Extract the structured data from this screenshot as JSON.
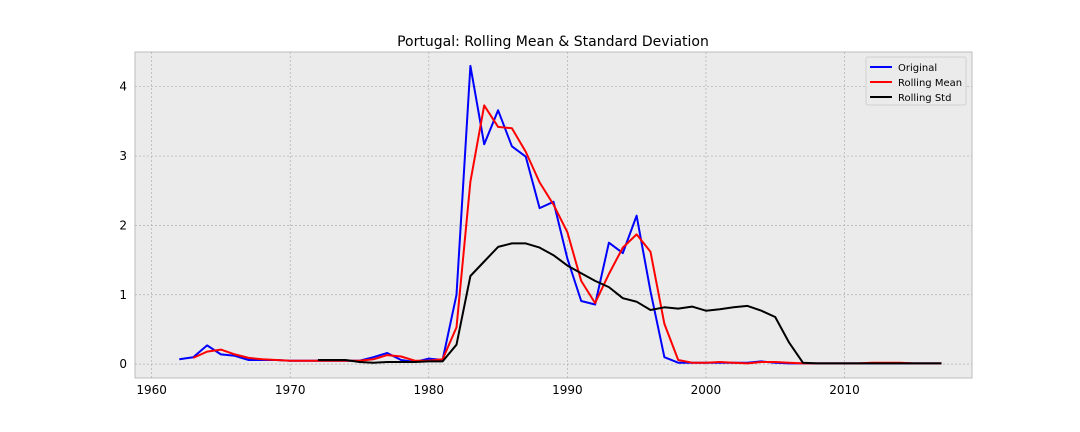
{
  "chart_data": {
    "type": "line",
    "title": "Portugal: Rolling Mean & Standard Deviation",
    "xlabel": "",
    "ylabel": "",
    "xlim": [
      1958.8,
      2019.2
    ],
    "ylim": [
      -0.2,
      4.5
    ],
    "x_ticks": [
      1960,
      1970,
      1980,
      1990,
      2000,
      2010
    ],
    "y_ticks": [
      0,
      1,
      2,
      3,
      4
    ],
    "grid": true,
    "legend_position": "top-right",
    "series": [
      {
        "name": "Original",
        "color": "#0000ff",
        "points": [
          [
            1962,
            0.07
          ],
          [
            1963,
            0.1
          ],
          [
            1964,
            0.27
          ],
          [
            1965,
            0.14
          ],
          [
            1966,
            0.12
          ],
          [
            1967,
            0.06
          ],
          [
            1968,
            0.06
          ],
          [
            1969,
            0.06
          ],
          [
            1970,
            0.05
          ],
          [
            1971,
            0.05
          ],
          [
            1972,
            0.05
          ],
          [
            1973,
            0.05
          ],
          [
            1974,
            0.05
          ],
          [
            1975,
            0.05
          ],
          [
            1976,
            0.1
          ],
          [
            1977,
            0.16
          ],
          [
            1978,
            0.06
          ],
          [
            1979,
            0.03
          ],
          [
            1980,
            0.08
          ],
          [
            1981,
            0.06
          ],
          [
            1982,
            1.0
          ],
          [
            1983,
            4.3
          ],
          [
            1984,
            3.17
          ],
          [
            1985,
            3.66
          ],
          [
            1986,
            3.14
          ],
          [
            1987,
            2.99
          ],
          [
            1988,
            2.25
          ],
          [
            1989,
            2.34
          ],
          [
            1990,
            1.52
          ],
          [
            1991,
            0.91
          ],
          [
            1992,
            0.86
          ],
          [
            1993,
            1.75
          ],
          [
            1994,
            1.6
          ],
          [
            1995,
            2.14
          ],
          [
            1996,
            1.05
          ],
          [
            1997,
            0.1
          ],
          [
            1998,
            0.02
          ],
          [
            1999,
            0.02
          ],
          [
            2000,
            0.02
          ],
          [
            2001,
            0.02
          ],
          [
            2002,
            0.02
          ],
          [
            2003,
            0.02
          ],
          [
            2004,
            0.04
          ],
          [
            2005,
            0.02
          ],
          [
            2006,
            0.01
          ],
          [
            2007,
            0.01
          ],
          [
            2008,
            0.01
          ],
          [
            2009,
            0.01
          ],
          [
            2010,
            0.01
          ],
          [
            2011,
            0.01
          ],
          [
            2012,
            0.01
          ],
          [
            2013,
            0.01
          ],
          [
            2014,
            0.01
          ],
          [
            2015,
            0.01
          ],
          [
            2016,
            0.01
          ],
          [
            2017,
            0.01
          ]
        ]
      },
      {
        "name": "Rolling Mean",
        "color": "#ff0000",
        "points": [
          [
            1963,
            0.09
          ],
          [
            1964,
            0.18
          ],
          [
            1965,
            0.21
          ],
          [
            1966,
            0.14
          ],
          [
            1967,
            0.09
          ],
          [
            1968,
            0.07
          ],
          [
            1969,
            0.06
          ],
          [
            1970,
            0.05
          ],
          [
            1971,
            0.05
          ],
          [
            1972,
            0.05
          ],
          [
            1973,
            0.05
          ],
          [
            1974,
            0.05
          ],
          [
            1975,
            0.05
          ],
          [
            1976,
            0.07
          ],
          [
            1977,
            0.13
          ],
          [
            1978,
            0.11
          ],
          [
            1979,
            0.05
          ],
          [
            1980,
            0.05
          ],
          [
            1981,
            0.07
          ],
          [
            1982,
            0.53
          ],
          [
            1983,
            2.63
          ],
          [
            1984,
            3.73
          ],
          [
            1985,
            3.42
          ],
          [
            1986,
            3.4
          ],
          [
            1987,
            3.06
          ],
          [
            1988,
            2.62
          ],
          [
            1989,
            2.3
          ],
          [
            1990,
            1.9
          ],
          [
            1991,
            1.2
          ],
          [
            1992,
            0.88
          ],
          [
            1993,
            1.3
          ],
          [
            1994,
            1.68
          ],
          [
            1995,
            1.87
          ],
          [
            1996,
            1.62
          ],
          [
            1997,
            0.58
          ],
          [
            1998,
            0.06
          ],
          [
            1999,
            0.02
          ],
          [
            2000,
            0.02
          ],
          [
            2001,
            0.03
          ],
          [
            2002,
            0.02
          ],
          [
            2003,
            0.01
          ],
          [
            2004,
            0.03
          ],
          [
            2005,
            0.03
          ],
          [
            2006,
            0.02
          ],
          [
            2007,
            0.01
          ],
          [
            2008,
            0.01
          ],
          [
            2009,
            0.01
          ],
          [
            2010,
            0.01
          ],
          [
            2011,
            0.01
          ],
          [
            2012,
            0.02
          ],
          [
            2013,
            0.02
          ],
          [
            2014,
            0.02
          ],
          [
            2015,
            0.01
          ],
          [
            2016,
            0.01
          ],
          [
            2017,
            0.01
          ]
        ]
      },
      {
        "name": "Rolling Std",
        "color": "#000000",
        "points": [
          [
            1972,
            0.06
          ],
          [
            1973,
            0.06
          ],
          [
            1974,
            0.06
          ],
          [
            1975,
            0.03
          ],
          [
            1976,
            0.02
          ],
          [
            1977,
            0.03
          ],
          [
            1978,
            0.03
          ],
          [
            1979,
            0.03
          ],
          [
            1980,
            0.04
          ],
          [
            1981,
            0.04
          ],
          [
            1982,
            0.28
          ],
          [
            1983,
            1.27
          ],
          [
            1984,
            1.48
          ],
          [
            1985,
            1.69
          ],
          [
            1986,
            1.74
          ],
          [
            1987,
            1.74
          ],
          [
            1988,
            1.68
          ],
          [
            1989,
            1.57
          ],
          [
            1990,
            1.42
          ],
          [
            1991,
            1.31
          ],
          [
            1992,
            1.2
          ],
          [
            1993,
            1.11
          ],
          [
            1994,
            0.95
          ],
          [
            1995,
            0.9
          ],
          [
            1996,
            0.78
          ],
          [
            1997,
            0.82
          ],
          [
            1998,
            0.8
          ],
          [
            1999,
            0.83
          ],
          [
            2000,
            0.77
          ],
          [
            2001,
            0.79
          ],
          [
            2002,
            0.82
          ],
          [
            2003,
            0.84
          ],
          [
            2004,
            0.77
          ],
          [
            2005,
            0.68
          ],
          [
            2006,
            0.31
          ],
          [
            2007,
            0.02
          ],
          [
            2008,
            0.01
          ],
          [
            2009,
            0.01
          ],
          [
            2010,
            0.01
          ],
          [
            2011,
            0.01
          ],
          [
            2012,
            0.01
          ],
          [
            2013,
            0.01
          ],
          [
            2014,
            0.01
          ],
          [
            2015,
            0.01
          ],
          [
            2016,
            0.01
          ],
          [
            2017,
            0.01
          ]
        ]
      }
    ]
  },
  "colors": {
    "plot_background": "#ebebeb",
    "grid": "#b0b0b0",
    "axes_edge": "#bcbcbc"
  }
}
